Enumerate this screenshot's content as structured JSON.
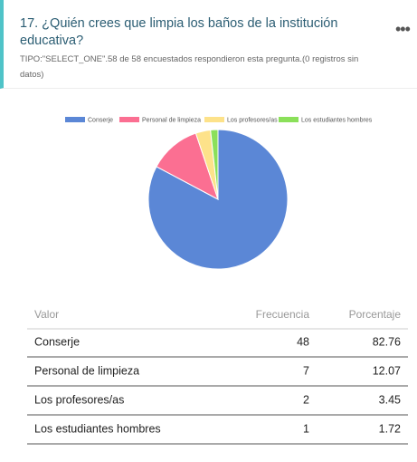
{
  "header": {
    "title": "17. ¿Quién crees que limpia los baños de la institución educativa?",
    "subtitle": "TIPO:\"SELECT_ONE\".58 de 58 encuestados respondieron esta pregunta.(0 registros sin datos)"
  },
  "chart_data": {
    "type": "pie",
    "categories": [
      "Conserje",
      "Personal de limpieza",
      "Los profesores/as",
      "Los estudiantes hombres"
    ],
    "values": [
      48,
      7,
      2,
      1
    ],
    "colors": [
      "#5b87d6",
      "#fb6f92",
      "#fde28a",
      "#8be05a"
    ],
    "legend": "top"
  },
  "table": {
    "columns": [
      "Valor",
      "Frecuencia",
      "Porcentaje"
    ],
    "rows": [
      [
        "Conserje",
        48,
        82.76
      ],
      [
        "Personal de limpieza",
        7,
        12.07
      ],
      [
        "Los profesores/as",
        2,
        3.45
      ],
      [
        "Los estudiantes hombres",
        1,
        1.72
      ]
    ]
  }
}
